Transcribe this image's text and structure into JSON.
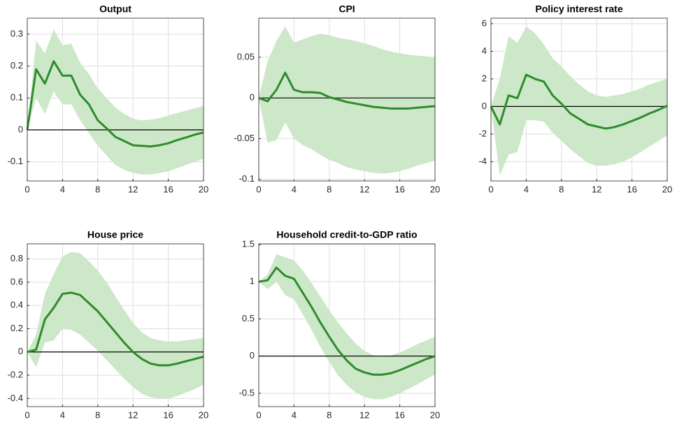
{
  "chart_data": [
    {
      "type": "line",
      "title": "Output",
      "x": [
        0,
        1,
        2,
        3,
        4,
        5,
        6,
        7,
        8,
        9,
        10,
        11,
        12,
        13,
        14,
        15,
        16,
        17,
        18,
        19,
        20
      ],
      "values": [
        0,
        0.19,
        0.145,
        0.215,
        0.17,
        0.17,
        0.11,
        0.08,
        0.03,
        0.005,
        -0.022,
        -0.035,
        -0.048,
        -0.05,
        -0.052,
        -0.048,
        -0.042,
        -0.032,
        -0.024,
        -0.015,
        -0.008
      ],
      "upper": [
        0,
        0.28,
        0.24,
        0.315,
        0.265,
        0.27,
        0.21,
        0.175,
        0.13,
        0.1,
        0.07,
        0.05,
        0.035,
        0.03,
        0.032,
        0.037,
        0.045,
        0.053,
        0.06,
        0.068,
        0.075
      ],
      "lower": [
        0,
        0.1,
        0.05,
        0.12,
        0.08,
        0.08,
        0.03,
        -0.01,
        -0.05,
        -0.08,
        -0.11,
        -0.125,
        -0.135,
        -0.14,
        -0.14,
        -0.135,
        -0.13,
        -0.12,
        -0.11,
        -0.1,
        -0.09
      ],
      "color": "#2e8b2e",
      "band_color": "#cde8c9",
      "hline": 0,
      "xlim": [
        0,
        20
      ],
      "xticks": [
        0,
        4,
        8,
        12,
        16,
        20
      ],
      "ylim": [
        -0.16,
        0.35
      ],
      "yticks": [
        -0.1,
        0,
        0.1,
        0.2,
        0.3
      ],
      "grid": true
    },
    {
      "type": "line",
      "title": "CPI",
      "x": [
        0,
        1,
        2,
        3,
        4,
        5,
        6,
        7,
        8,
        9,
        10,
        11,
        12,
        13,
        14,
        15,
        16,
        17,
        18,
        19,
        20
      ],
      "values": [
        0,
        -0.004,
        0.01,
        0.031,
        0.01,
        0.007,
        0.007,
        0.006,
        0.001,
        -0.002,
        -0.005,
        -0.007,
        -0.009,
        -0.011,
        -0.012,
        -0.013,
        -0.013,
        -0.013,
        -0.012,
        -0.011,
        -0.01
      ],
      "upper": [
        0,
        0.045,
        0.07,
        0.088,
        0.068,
        0.072,
        0.076,
        0.079,
        0.077,
        0.074,
        0.072,
        0.07,
        0.067,
        0.064,
        0.06,
        0.057,
        0.055,
        0.053,
        0.052,
        0.051,
        0.05
      ],
      "lower": [
        0,
        -0.055,
        -0.052,
        -0.03,
        -0.05,
        -0.058,
        -0.063,
        -0.07,
        -0.076,
        -0.08,
        -0.085,
        -0.088,
        -0.09,
        -0.092,
        -0.093,
        -0.092,
        -0.09,
        -0.087,
        -0.083,
        -0.08,
        -0.077
      ],
      "color": "#2e8b2e",
      "band_color": "#cde8c9",
      "hline": 0,
      "xlim": [
        0,
        20
      ],
      "xticks": [
        0,
        4,
        8,
        12,
        16,
        20
      ],
      "ylim": [
        -0.102,
        0.098
      ],
      "yticks": [
        -0.1,
        -0.05,
        0,
        0.05
      ],
      "grid": true
    },
    {
      "type": "line",
      "title": "Policy interest rate",
      "x": [
        0,
        1,
        2,
        3,
        4,
        5,
        6,
        7,
        8,
        9,
        10,
        11,
        12,
        13,
        14,
        15,
        16,
        17,
        18,
        19,
        20
      ],
      "values": [
        0,
        -1.3,
        0.8,
        0.6,
        2.3,
        2.0,
        1.8,
        0.8,
        0.2,
        -0.5,
        -0.9,
        -1.3,
        -1.45,
        -1.6,
        -1.5,
        -1.3,
        -1.05,
        -0.8,
        -0.5,
        -0.25,
        0.05
      ],
      "upper": [
        0,
        2,
        5.1,
        4.6,
        5.8,
        5.3,
        4.5,
        3.5,
        2.9,
        2.2,
        1.6,
        1.1,
        0.8,
        0.7,
        0.8,
        0.9,
        1.1,
        1.3,
        1.6,
        1.8,
        2.0
      ],
      "lower": [
        0,
        -5,
        -3.5,
        -3.3,
        -1,
        -1,
        -1.1,
        -1.9,
        -2.5,
        -3.1,
        -3.6,
        -4.1,
        -4.3,
        -4.3,
        -4.2,
        -4,
        -3.7,
        -3.3,
        -2.9,
        -2.5,
        -2.1
      ],
      "color": "#2e8b2e",
      "band_color": "#cde8c9",
      "hline": 0,
      "xlim": [
        0,
        20
      ],
      "xticks": [
        0,
        4,
        8,
        12,
        16,
        20
      ],
      "ylim": [
        -5.4,
        6.4
      ],
      "yticks": [
        -4,
        -2,
        0,
        2,
        4,
        6
      ],
      "grid": true
    },
    {
      "type": "line",
      "title": "House price",
      "x": [
        0,
        1,
        2,
        3,
        4,
        5,
        6,
        7,
        8,
        9,
        10,
        11,
        12,
        13,
        14,
        15,
        16,
        17,
        18,
        19,
        20
      ],
      "values": [
        0,
        0.02,
        0.28,
        0.38,
        0.5,
        0.51,
        0.49,
        0.42,
        0.35,
        0.26,
        0.17,
        0.08,
        0,
        -0.06,
        -0.1,
        -0.115,
        -0.115,
        -0.1,
        -0.08,
        -0.06,
        -0.04
      ],
      "upper": [
        0,
        0.15,
        0.5,
        0.67,
        0.82,
        0.86,
        0.85,
        0.78,
        0.7,
        0.6,
        0.48,
        0.36,
        0.25,
        0.17,
        0.12,
        0.1,
        0.09,
        0.09,
        0.1,
        0.11,
        0.12
      ],
      "lower": [
        0,
        -0.13,
        0.08,
        0.1,
        0.2,
        0.19,
        0.15,
        0.08,
        0.01,
        -0.07,
        -0.15,
        -0.23,
        -0.3,
        -0.36,
        -0.39,
        -0.4,
        -0.4,
        -0.38,
        -0.35,
        -0.32,
        -0.28
      ],
      "color": "#2e8b2e",
      "band_color": "#cde8c9",
      "hline": 0,
      "xlim": [
        0,
        20
      ],
      "xticks": [
        0,
        4,
        8,
        12,
        16,
        20
      ],
      "ylim": [
        -0.47,
        0.93
      ],
      "yticks": [
        -0.4,
        -0.2,
        0,
        0.2,
        0.4,
        0.6,
        0.8
      ],
      "grid": true
    },
    {
      "type": "line",
      "title": "Household credit-to-GDP ratio",
      "x": [
        0,
        1,
        2,
        3,
        4,
        5,
        6,
        7,
        8,
        9,
        10,
        11,
        12,
        13,
        14,
        15,
        16,
        17,
        18,
        19,
        20
      ],
      "values": [
        1,
        1.02,
        1.19,
        1.08,
        1.04,
        0.85,
        0.66,
        0.45,
        0.26,
        0.08,
        -0.06,
        -0.17,
        -0.22,
        -0.25,
        -0.25,
        -0.23,
        -0.19,
        -0.14,
        -0.09,
        -0.04,
        0
      ],
      "upper": [
        1,
        1.1,
        1.37,
        1.33,
        1.29,
        1.15,
        0.98,
        0.8,
        0.62,
        0.45,
        0.3,
        0.17,
        0.07,
        0.01,
        -0.01,
        0.01,
        0.05,
        0.1,
        0.16,
        0.21,
        0.26
      ],
      "lower": [
        1,
        0.9,
        1.0,
        0.82,
        0.76,
        0.56,
        0.35,
        0.12,
        -0.08,
        -0.26,
        -0.39,
        -0.49,
        -0.55,
        -0.58,
        -0.58,
        -0.55,
        -0.5,
        -0.44,
        -0.38,
        -0.31,
        -0.25
      ],
      "color": "#2e8b2e",
      "band_color": "#cde8c9",
      "hline": 0,
      "xlim": [
        0,
        20
      ],
      "xticks": [
        0,
        4,
        8,
        12,
        16,
        20
      ],
      "ylim": [
        -0.68,
        1.51
      ],
      "yticks": [
        -0.5,
        0,
        0.5,
        1,
        1.5
      ],
      "grid": true
    }
  ]
}
